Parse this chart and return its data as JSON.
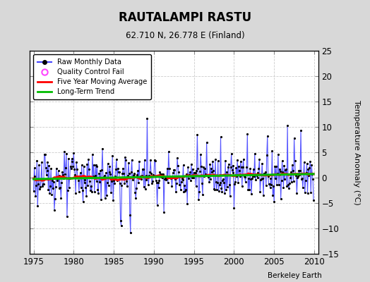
{
  "title": "RAUTALAMPI RASTU",
  "subtitle": "62.710 N, 26.778 E (Finland)",
  "ylabel": "Temperature Anomaly (°C)",
  "attribution": "Berkeley Earth",
  "xlim": [
    1974.5,
    2010.5
  ],
  "ylim": [
    -15,
    25
  ],
  "yticks": [
    -15,
    -10,
    -5,
    0,
    5,
    10,
    15,
    20,
    25
  ],
  "xticks": [
    1975,
    1980,
    1985,
    1990,
    1995,
    2000,
    2005,
    2010
  ],
  "fig_bg_color": "#d8d8d8",
  "plot_bg_color": "#ffffff",
  "line_color": "#4444ff",
  "moving_avg_color": "#ff0000",
  "trend_color": "#00bb00",
  "qc_color": "#ff44ff",
  "seed": 123
}
